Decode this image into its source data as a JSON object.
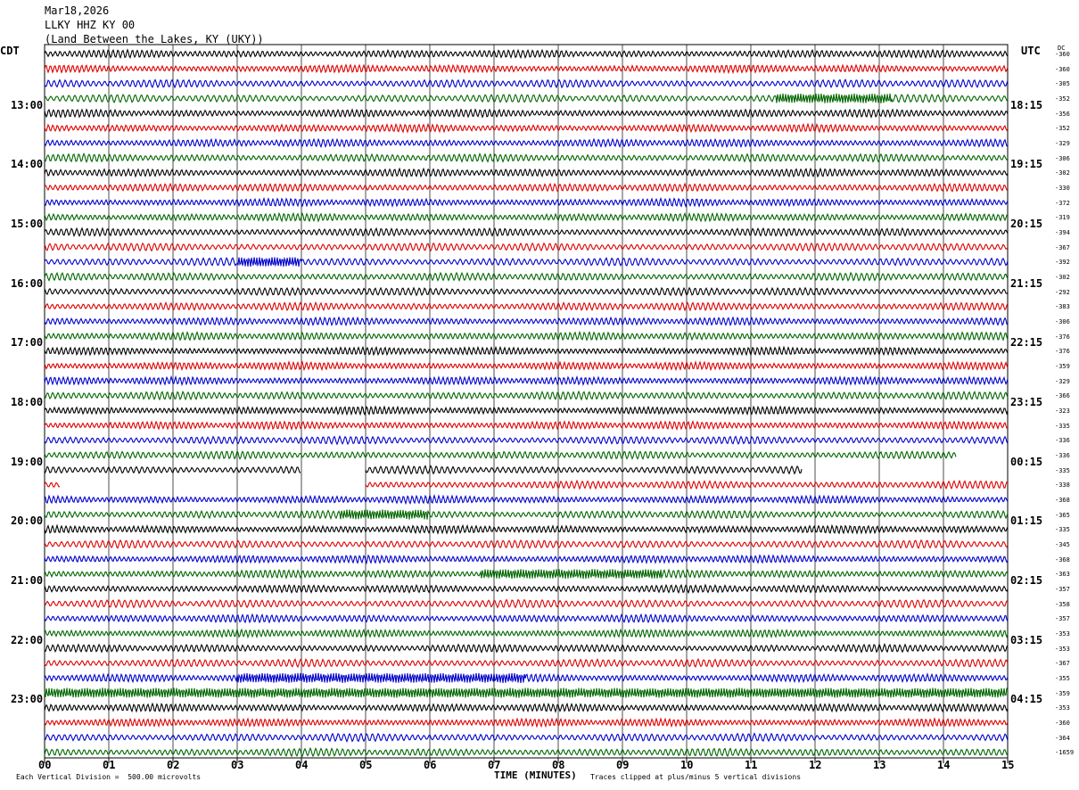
{
  "header": {
    "date": "Mar18,2026",
    "station": "LLKY HHZ KY 00",
    "location": "(Land Between the Lakes, KY (UKY))"
  },
  "left_tz": "CDT",
  "right_tz": "UTC",
  "dc_header": "DC",
  "footer": {
    "scale": "Each Vertical Division =  500.00 microvolts",
    "xlabel": "TIME (MINUTES)",
    "clip_note": "Traces clipped at plus/minus 5 vertical divisions"
  },
  "chart_data": {
    "type": "line",
    "xlabel": "TIME (MINUTES)",
    "xlim": [
      0,
      15
    ],
    "x_ticks": [
      "00",
      "01",
      "02",
      "03",
      "04",
      "05",
      "06",
      "07",
      "08",
      "09",
      "10",
      "11",
      "12",
      "13",
      "14",
      "15"
    ],
    "trace_colors": [
      "#000000",
      "#dd0000",
      "#0000cc",
      "#006600"
    ],
    "left_hour_labels": [
      "13:00",
      "14:00",
      "15:00",
      "16:00",
      "17:00",
      "18:00",
      "19:00",
      "20:00",
      "21:00",
      "22:00",
      "23:00"
    ],
    "right_hour_labels": [
      "18:15",
      "19:15",
      "20:15",
      "21:15",
      "22:15",
      "23:15",
      "00:15",
      "01:15",
      "02:15",
      "03:15",
      "04:15"
    ],
    "dc_values": [
      "-360",
      "-360",
      "-305",
      "-352",
      "-356",
      "-352",
      "-329",
      "-306",
      "-302",
      "-330",
      "-372",
      "-319",
      "-394",
      "-367",
      "-392",
      "-302",
      "-292",
      "-383",
      "-306",
      "-376",
      "-376",
      "-359",
      "-329",
      "-366",
      "-323",
      "-335",
      "-336",
      "-336",
      "-335",
      "-338",
      "-368",
      "-365",
      "-335",
      "-345",
      "-368",
      "-363",
      "-357",
      "-358",
      "-357",
      "-353",
      "-353",
      "-367",
      "-355",
      "-359",
      "-353",
      "-360",
      "-364",
      "-1659"
    ],
    "gaps": [
      {
        "row": 28,
        "from_min": 4.0,
        "to_min": 5.0
      },
      {
        "row": 28,
        "from_min": 11.8,
        "to_min": 15.0
      },
      {
        "row": 27,
        "from_min": 14.2,
        "to_min": 15.0
      },
      {
        "row": 29,
        "from_min": 0.25,
        "to_min": 5.0
      }
    ],
    "bursts": [
      {
        "row": 3,
        "from_min": 11.4,
        "to_min": 13.2
      },
      {
        "row": 14,
        "from_min": 3.0,
        "to_min": 4.0
      },
      {
        "row": 31,
        "from_min": 4.6,
        "to_min": 6.0
      },
      {
        "row": 35,
        "from_min": 6.8,
        "to_min": 9.6
      },
      {
        "row": 42,
        "from_min": 3.0,
        "to_min": 7.5
      },
      {
        "row": 43,
        "from_min": 0.0,
        "to_min": 15.0
      }
    ]
  }
}
